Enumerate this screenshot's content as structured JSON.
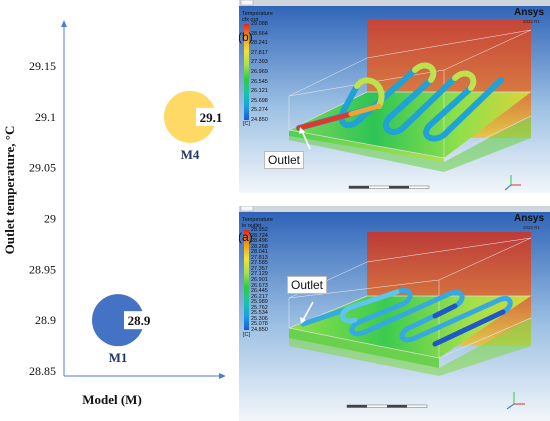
{
  "chart_data": {
    "type": "scatter",
    "title": "",
    "xlabel": "Model (M)",
    "ylabel": "Outlet temperature, °C",
    "ylim": [
      28.85,
      29.17
    ],
    "yticks": [
      "28.85",
      "28.9",
      "28.95",
      "29",
      "29.05",
      "29.1",
      "29.15"
    ],
    "grid": false,
    "points": [
      {
        "label": "M1",
        "value": 28.9,
        "value_label": "28.9",
        "color": "#4472c4"
      },
      {
        "label": "M4",
        "value": 29.1,
        "value_label": "29.1",
        "color": "#ffd966"
      }
    ]
  },
  "panels": {
    "b": {
      "tag": "(b)",
      "legend_title": "Temperature\ncfx out",
      "legend_values": [
        "29.088",
        "28.664",
        "28.241",
        "27.817",
        "27.393",
        "26.969",
        "26.545",
        "26.121",
        "25.698",
        "25.274",
        "24.850"
      ],
      "unit": "[C]",
      "brand": "Ansys",
      "version": "2022 R1",
      "outlet_label": "Outlet",
      "colors": {
        "warm": "#c0392b",
        "mid": "#2ecc40",
        "cool": "#1f6fd6"
      }
    },
    "a": {
      "tag": "(a)",
      "legend_title": "Temperature\nin outlet",
      "legend_values": [
        "28.952",
        "28.724",
        "28.496",
        "28.268",
        "28.041",
        "27.813",
        "27.585",
        "27.357",
        "27.129",
        "26.901",
        "26.673",
        "26.445",
        "26.217",
        "25.989",
        "25.762",
        "25.534",
        "25.306",
        "25.078",
        "24.850"
      ],
      "unit": "[C]",
      "brand": "Ansys",
      "version": "2022 R1",
      "outlet_label": "Outlet",
      "colors": {
        "warm": "#c0392b",
        "mid": "#2ecc40",
        "cool": "#1f6fd6"
      }
    }
  }
}
